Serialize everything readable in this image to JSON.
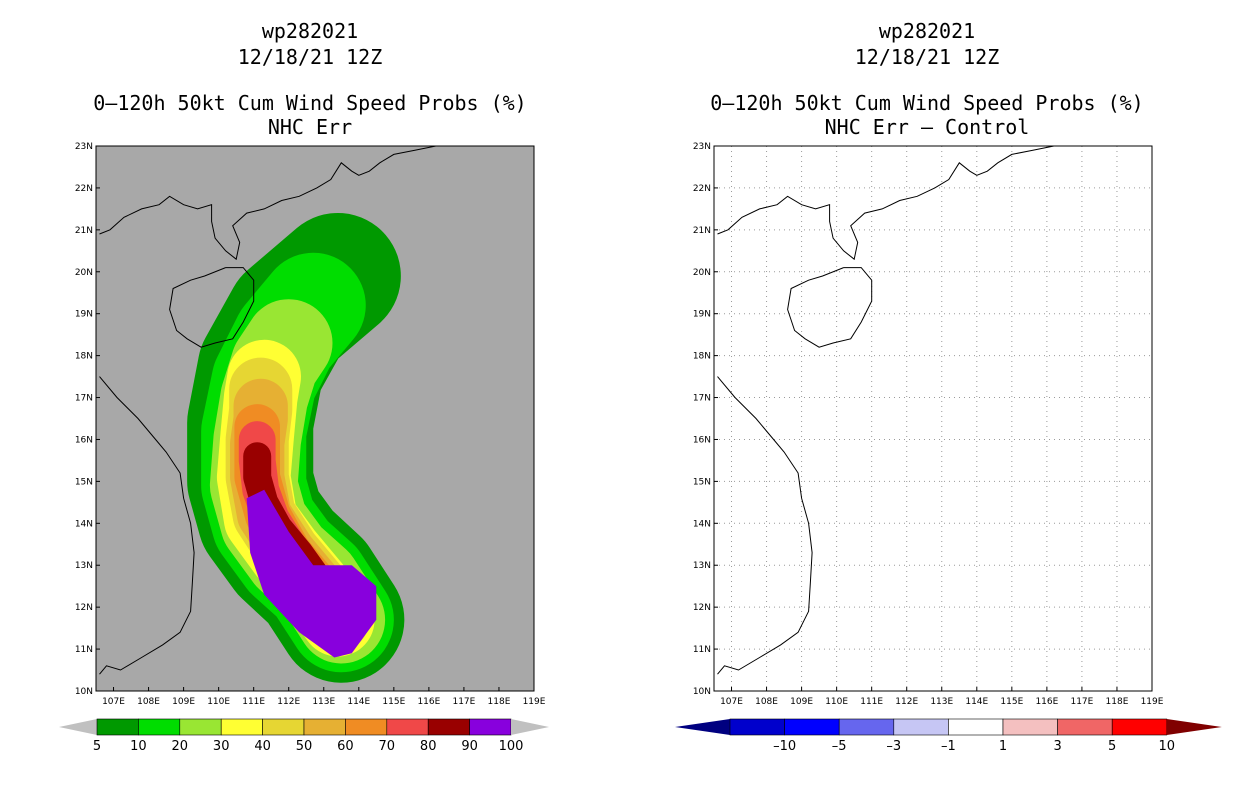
{
  "chart_data": [
    {
      "type": "heatmap",
      "storm_id": "wp282021",
      "datetime": "12/18/21 12Z",
      "title": "0–120h 50kt Cum Wind Speed Probs (%)",
      "subtitle": "NHC Err",
      "x_ticks": [
        "107E",
        "108E",
        "109E",
        "110E",
        "111E",
        "112E",
        "113E",
        "114E",
        "115E",
        "116E",
        "117E",
        "118E",
        "119E"
      ],
      "y_ticks": [
        "23N",
        "22N",
        "21N",
        "20N",
        "19N",
        "18N",
        "17N",
        "16N",
        "15N",
        "14N",
        "13N",
        "12N",
        "11N",
        "10N"
      ],
      "xlim": [
        106.5,
        119
      ],
      "ylim": [
        10,
        23
      ],
      "colorbar": {
        "levels": [
          "5",
          "10",
          "20",
          "30",
          "40",
          "50",
          "60",
          "70",
          "80",
          "90",
          "100"
        ],
        "colors": [
          "#009900",
          "#00dd00",
          "#99e633",
          "#ffff33",
          "#e6d633",
          "#e6b033",
          "#f08c23",
          "#f04848",
          "#990000",
          "#8800dd"
        ],
        "under_color": "#c0c0c0",
        "over_color": "#c0c0c0"
      },
      "background_color": "#a8a8a8",
      "track_bands": [
        {
          "level": "5",
          "spine": [
            [
              113.4,
              19.9
            ],
            [
              112.0,
              18.9
            ],
            [
              111.2,
              17.7
            ],
            [
              110.9,
              16.4
            ],
            [
              110.9,
              15.0
            ],
            [
              111.2,
              14.1
            ],
            [
              111.9,
              13.3
            ],
            [
              112.8,
              12.6
            ],
            [
              113.5,
              11.7
            ]
          ],
          "width_deg": 3.6
        },
        {
          "level": "10",
          "spine": [
            [
              112.7,
              19.2
            ],
            [
              111.9,
              18.4
            ],
            [
              111.3,
              17.4
            ],
            [
              111.0,
              16.2
            ],
            [
              111.0,
              14.9
            ],
            [
              111.3,
              14.0
            ],
            [
              112.0,
              13.2
            ],
            [
              112.8,
              12.6
            ],
            [
              113.5,
              11.7
            ]
          ],
          "width_deg": 3.0
        },
        {
          "level": "20",
          "spine": [
            [
              112.0,
              18.3
            ],
            [
              111.6,
              17.8
            ],
            [
              111.3,
              17.0
            ],
            [
              111.1,
              16.0
            ],
            [
              111.0,
              14.9
            ],
            [
              111.3,
              14.0
            ],
            [
              112.0,
              13.2
            ],
            [
              112.8,
              12.6
            ],
            [
              113.5,
              11.7
            ]
          ],
          "width_deg": 2.5
        },
        {
          "level": "30",
          "spine": [
            [
              111.3,
              17.5
            ],
            [
              111.2,
              17.0
            ],
            [
              111.1,
              16.1
            ],
            [
              111.0,
              15.1
            ],
            [
              111.2,
              14.1
            ],
            [
              111.9,
              13.3
            ],
            [
              112.7,
              12.5
            ],
            [
              113.4,
              11.7
            ]
          ],
          "width_deg": 2.1
        },
        {
          "level": "40",
          "spine": [
            [
              111.2,
              17.2
            ],
            [
              111.2,
              16.7
            ],
            [
              111.1,
              16.0
            ],
            [
              111.1,
              15.1
            ],
            [
              111.3,
              14.2
            ],
            [
              112.0,
              13.3
            ],
            [
              112.8,
              12.5
            ],
            [
              113.4,
              11.7
            ]
          ],
          "width_deg": 1.8
        },
        {
          "level": "50",
          "spine": [
            [
              111.2,
              16.8
            ],
            [
              111.2,
              16.5
            ],
            [
              111.1,
              15.9
            ],
            [
              111.1,
              15.1
            ],
            [
              111.3,
              14.2
            ],
            [
              112.0,
              13.3
            ],
            [
              112.8,
              12.5
            ],
            [
              113.4,
              11.7
            ]
          ],
          "width_deg": 1.55
        },
        {
          "level": "60",
          "spine": [
            [
              111.1,
              16.3
            ],
            [
              111.1,
              15.8
            ],
            [
              111.1,
              15.1
            ],
            [
              111.4,
              14.2
            ],
            [
              112.0,
              13.3
            ],
            [
              112.8,
              12.5
            ],
            [
              113.4,
              11.8
            ]
          ],
          "width_deg": 1.3
        },
        {
          "level": "70",
          "spine": [
            [
              111.1,
              16.0
            ],
            [
              111.1,
              15.5
            ],
            [
              111.2,
              14.8
            ],
            [
              111.5,
              14.1
            ],
            [
              112.1,
              13.3
            ],
            [
              112.8,
              12.5
            ],
            [
              113.4,
              11.8
            ]
          ],
          "width_deg": 1.05
        },
        {
          "level": "80",
          "spine": [
            [
              111.1,
              15.6
            ],
            [
              111.1,
              15.1
            ],
            [
              111.3,
              14.5
            ],
            [
              111.7,
              13.9
            ],
            [
              112.3,
              13.3
            ],
            [
              112.9,
              12.6
            ],
            [
              113.4,
              11.9
            ]
          ],
          "width_deg": 0.8
        }
      ],
      "max_region": {
        "level": "100",
        "outline": [
          [
            110.8,
            14.6
          ],
          [
            111.3,
            14.8
          ],
          [
            112.0,
            13.8
          ],
          [
            112.7,
            13.0
          ],
          [
            113.8,
            13.0
          ],
          [
            114.5,
            12.5
          ],
          [
            114.5,
            11.7
          ],
          [
            113.8,
            10.9
          ],
          [
            113.3,
            10.8
          ],
          [
            112.3,
            11.4
          ],
          [
            111.3,
            12.3
          ],
          [
            110.9,
            13.3
          ]
        ]
      }
    },
    {
      "type": "heatmap",
      "storm_id": "wp282021",
      "datetime": "12/18/21 12Z",
      "title": "0–120h 50kt Cum Wind Speed Probs (%)",
      "subtitle": "NHC Err – Control",
      "x_ticks": [
        "107E",
        "108E",
        "109E",
        "110E",
        "111E",
        "112E",
        "113E",
        "114E",
        "115E",
        "116E",
        "117E",
        "118E",
        "119E"
      ],
      "y_ticks": [
        "23N",
        "22N",
        "21N",
        "20N",
        "19N",
        "18N",
        "17N",
        "16N",
        "15N",
        "14N",
        "13N",
        "12N",
        "11N",
        "10N"
      ],
      "xlim": [
        106.5,
        119
      ],
      "ylim": [
        10,
        23
      ],
      "grid": true,
      "colorbar": {
        "levels": [
          "–10",
          "–5",
          "–3",
          "–1",
          "1",
          "3",
          "5",
          "10"
        ],
        "colors": [
          "#0000cc",
          "#0000ff",
          "#6666ee",
          "#c6c6f4",
          "#ffffff",
          "#f4c0c0",
          "#f06666",
          "#ff0000"
        ],
        "under_color": "#000080",
        "over_color": "#800000"
      },
      "values": "no nonzero differences shown"
    }
  ]
}
